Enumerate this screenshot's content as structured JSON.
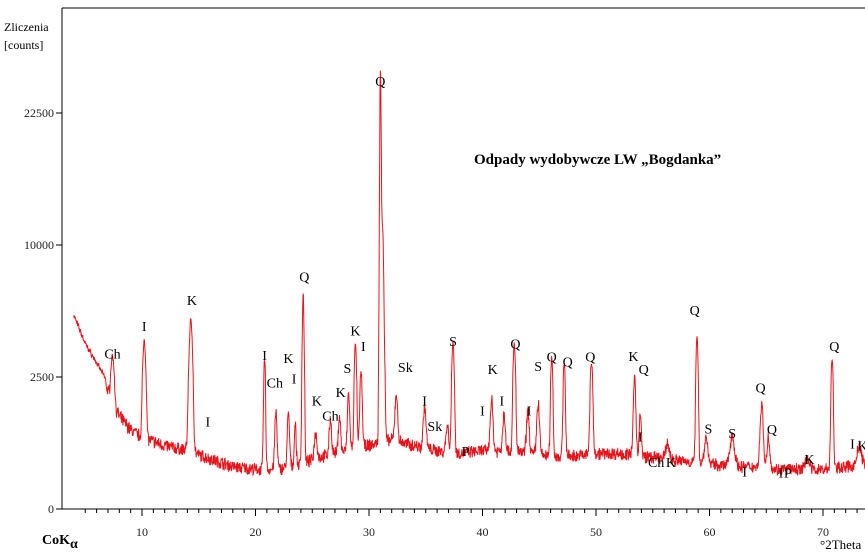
{
  "chart_data": {
    "type": "line",
    "title": "Odpady wydobywcze LW „Bogdanka”",
    "ylabel": [
      "Zliczenia",
      "[counts]"
    ],
    "xlabel_left": "CoK",
    "xlabel_left_sub": "α",
    "xlabel_right": "°2Theta",
    "xlim": [
      4,
      75
    ],
    "ylim": [
      0,
      26500
    ],
    "y_ticks": [
      0,
      2500,
      10000,
      22500
    ],
    "y_tick_labels": [
      "0",
      "2500",
      "10000",
      "22500"
    ],
    "x_ticks": [
      10,
      20,
      30,
      40,
      50,
      60,
      70
    ],
    "x_tick_labels": [
      "10",
      "20",
      "30",
      "40",
      "50",
      "60",
      "70"
    ],
    "series": [
      {
        "color": "#e8141c",
        "background": [
          [
            4,
            6000
          ],
          [
            5,
            4400
          ],
          [
            6,
            3300
          ],
          [
            7,
            2200
          ],
          [
            8,
            1750
          ],
          [
            9,
            1500
          ],
          [
            10,
            1350
          ],
          [
            12,
            1200
          ],
          [
            14,
            1100
          ],
          [
            16,
            950
          ],
          [
            18,
            800
          ],
          [
            20,
            750
          ],
          [
            22,
            750
          ],
          [
            24,
            850
          ],
          [
            26,
            1000
          ],
          [
            28,
            1100
          ],
          [
            30,
            1200
          ],
          [
            32,
            1300
          ],
          [
            34,
            1200
          ],
          [
            36,
            1100
          ],
          [
            38,
            1050
          ],
          [
            40,
            1100
          ],
          [
            42,
            1100
          ],
          [
            44,
            1050
          ],
          [
            46,
            1000
          ],
          [
            48,
            1000
          ],
          [
            50,
            1050
          ],
          [
            52,
            1050
          ],
          [
            54,
            1000
          ],
          [
            56,
            950
          ],
          [
            58,
            900
          ],
          [
            60,
            850
          ],
          [
            62,
            800
          ],
          [
            64,
            800
          ],
          [
            66,
            750
          ],
          [
            68,
            750
          ],
          [
            70,
            750
          ],
          [
            72,
            800
          ],
          [
            75,
            800
          ]
        ],
        "peaks": [
          [
            7.4,
            1700,
            0.12
          ],
          [
            10.2,
            3300,
            0.12
          ],
          [
            14.3,
            4800,
            0.14
          ],
          [
            20.8,
            2700,
            0.08
          ],
          [
            21.8,
            1100,
            0.1
          ],
          [
            22.9,
            1000,
            0.1
          ],
          [
            23.5,
            800,
            0.08
          ],
          [
            24.2,
            6500,
            0.08
          ],
          [
            25.3,
            500,
            0.12
          ],
          [
            26.6,
            700,
            0.1
          ],
          [
            27.4,
            700,
            0.1
          ],
          [
            28.2,
            1100,
            0.1
          ],
          [
            28.8,
            3200,
            0.09
          ],
          [
            29.3,
            1600,
            0.1
          ],
          [
            31.0,
            24000,
            0.07
          ],
          [
            31.2,
            10000,
            0.11
          ],
          [
            32.4,
            900,
            0.12
          ],
          [
            34.9,
            800,
            0.12
          ],
          [
            36.9,
            500,
            0.12
          ],
          [
            37.4,
            3400,
            0.1
          ],
          [
            40.8,
            1000,
            0.12
          ],
          [
            41.9,
            700,
            0.12
          ],
          [
            42.8,
            3300,
            0.1
          ],
          [
            44.0,
            800,
            0.12
          ],
          [
            44.9,
            1000,
            0.12
          ],
          [
            46.1,
            2600,
            0.09
          ],
          [
            47.2,
            2300,
            0.09
          ],
          [
            49.6,
            2200,
            0.11
          ],
          [
            53.4,
            1500,
            0.11
          ],
          [
            53.9,
            800,
            0.09
          ],
          [
            56.3,
            300,
            0.15
          ],
          [
            58.9,
            4000,
            0.09
          ],
          [
            59.7,
            500,
            0.15
          ],
          [
            62.0,
            600,
            0.2
          ],
          [
            64.6,
            1200,
            0.14
          ],
          [
            65.2,
            600,
            0.12
          ],
          [
            68.6,
            250,
            0.15
          ],
          [
            70.8,
            2800,
            0.09
          ],
          [
            73.2,
            400,
            0.2
          ]
        ]
      }
    ],
    "peak_labels": [
      {
        "text": "Ch",
        "x": 7.4,
        "y": 3550
      },
      {
        "text": "I",
        "x": 10.2,
        "y": 5120
      },
      {
        "text": "K",
        "x": 14.4,
        "y": 6590
      },
      {
        "text": "I",
        "x": 15.8,
        "y": 1560
      },
      {
        "text": "I",
        "x": 20.8,
        "y": 3460
      },
      {
        "text": "Ch",
        "x": 21.7,
        "y": 2300
      },
      {
        "text": "K",
        "x": 22.9,
        "y": 3300
      },
      {
        "text": "I",
        "x": 23.4,
        "y": 2380
      },
      {
        "text": "Q",
        "x": 24.3,
        "y": 7920
      },
      {
        "text": "K",
        "x": 25.4,
        "y": 1960
      },
      {
        "text": "Ch",
        "x": 26.6,
        "y": 1680
      },
      {
        "text": "K",
        "x": 27.5,
        "y": 2120
      },
      {
        "text": "S",
        "x": 28.1,
        "y": 2740
      },
      {
        "text": "K",
        "x": 28.8,
        "y": 4850
      },
      {
        "text": "I",
        "x": 29.5,
        "y": 3970
      },
      {
        "text": "Q",
        "x": 31.0,
        "y": 25050
      },
      {
        "text": "Sk",
        "x": 33.2,
        "y": 2790
      },
      {
        "text": "I",
        "x": 34.9,
        "y": 1960
      },
      {
        "text": "Sk",
        "x": 35.8,
        "y": 1480
      },
      {
        "text": "S",
        "x": 37.4,
        "y": 4260
      },
      {
        "text": "P",
        "x": 38.5,
        "y": 1000
      },
      {
        "text": "I",
        "x": 40.0,
        "y": 1770
      },
      {
        "text": "K",
        "x": 40.9,
        "y": 2660
      },
      {
        "text": "I",
        "x": 41.7,
        "y": 1960
      },
      {
        "text": "Q",
        "x": 42.9,
        "y": 4130
      },
      {
        "text": "I",
        "x": 44.1,
        "y": 1770
      },
      {
        "text": "S",
        "x": 44.9,
        "y": 2830
      },
      {
        "text": "Q",
        "x": 46.1,
        "y": 3380
      },
      {
        "text": "Q",
        "x": 47.5,
        "y": 3090
      },
      {
        "text": "Q",
        "x": 49.5,
        "y": 3380
      },
      {
        "text": "K",
        "x": 53.3,
        "y": 3420
      },
      {
        "text": "Q",
        "x": 54.2,
        "y": 2660
      },
      {
        "text": "I",
        "x": 53.9,
        "y": 1280
      },
      {
        "text": "Ch",
        "x": 55.3,
        "y": 800
      },
      {
        "text": "K",
        "x": 56.6,
        "y": 800
      },
      {
        "text": "Q",
        "x": 58.7,
        "y": 6030
      },
      {
        "text": "S",
        "x": 59.9,
        "y": 1430
      },
      {
        "text": "S",
        "x": 62.0,
        "y": 1340
      },
      {
        "text": "I",
        "x": 63.1,
        "y": 620
      },
      {
        "text": "Q",
        "x": 64.5,
        "y": 2210
      },
      {
        "text": "Q",
        "x": 65.5,
        "y": 1420
      },
      {
        "text": "I",
        "x": 66.3,
        "y": 600
      },
      {
        "text": "P",
        "x": 66.9,
        "y": 600
      },
      {
        "text": "K",
        "x": 68.8,
        "y": 850
      },
      {
        "text": "Q",
        "x": 71.0,
        "y": 3980
      },
      {
        "text": "I",
        "x": 72.6,
        "y": 1150
      },
      {
        "text": "K",
        "x": 73.5,
        "y": 1110
      }
    ]
  }
}
